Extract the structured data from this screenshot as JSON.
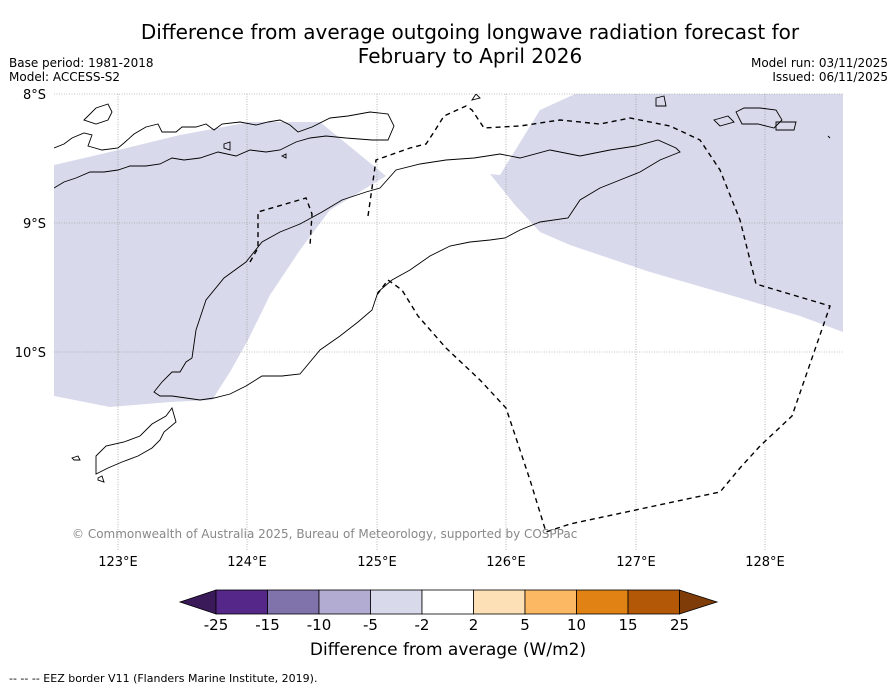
{
  "title_line1": "Difference from average outgoing longwave radiation forecast for",
  "title_line2": "February to April 2026",
  "base_period": "Base period: 1981-2018",
  "model": "Model: ACCESS-S2",
  "model_run": "Model run: 03/11/2025",
  "issued": "Issued: 06/11/2025",
  "copyright": "© Commonwealth of Australia 2025, Bureau of Meteorology, supported by COSPPac",
  "lat_labels": [
    "8°S",
    "9°S",
    "10°S"
  ],
  "lon_labels": [
    "123°E",
    "124°E",
    "125°E",
    "126°E",
    "127°E",
    "128°E"
  ],
  "colorbar": {
    "ticks": [
      "-25",
      "-15",
      "-10",
      "-5",
      "-2",
      "2",
      "5",
      "10",
      "15",
      "25"
    ],
    "colors": [
      "#3b1a5a",
      "#542788",
      "#8073ac",
      "#b2abd2",
      "#d8daeb",
      "#ffffff",
      "#fee0b6",
      "#fdb863",
      "#e08214",
      "#b35806",
      "#7f3b08"
    ],
    "label": "Difference from average (W/m2)"
  },
  "shading_color": "#d8daeb",
  "footer": "--  --  -- EEZ border V11 (Flanders Marine Institute, 2019)."
}
